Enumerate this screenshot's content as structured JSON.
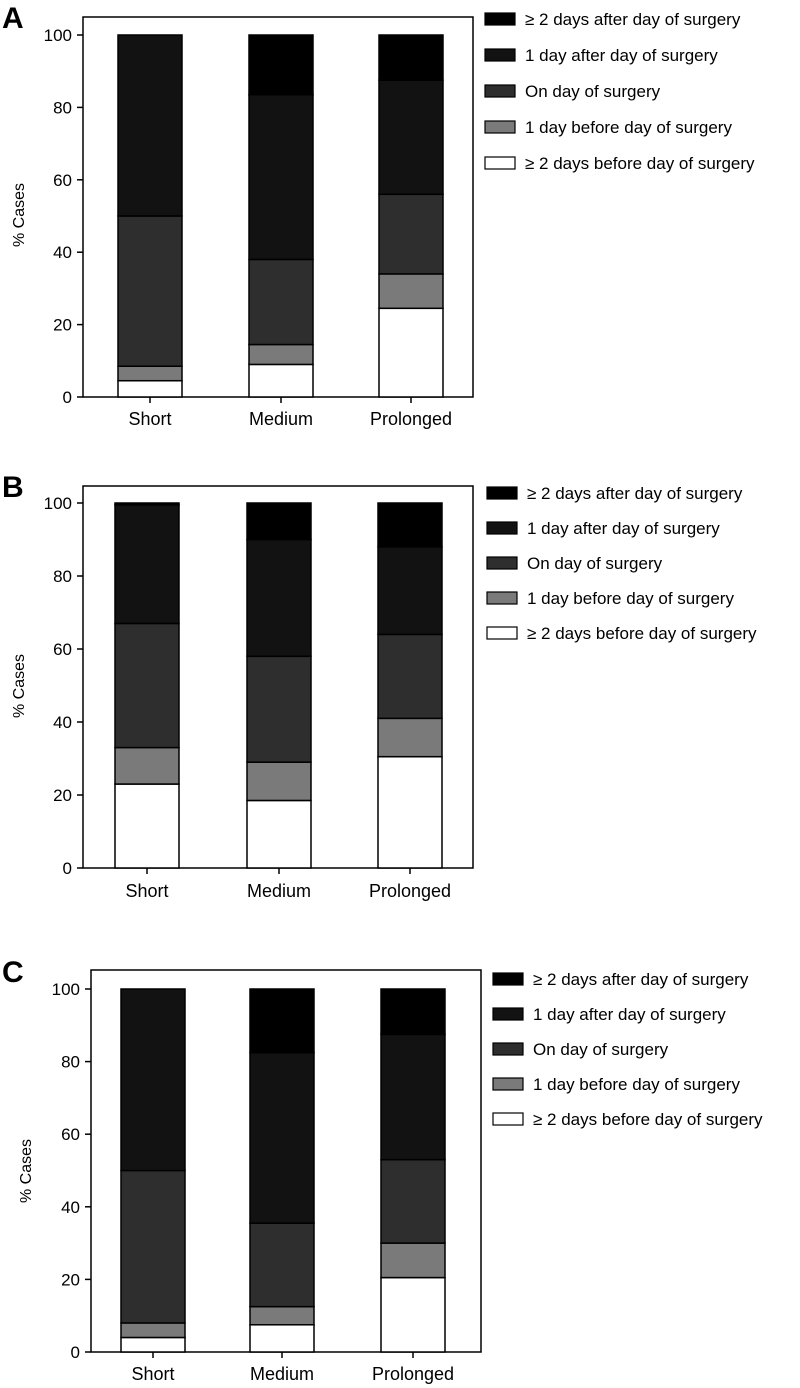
{
  "chart_data": [
    {
      "panel": "A",
      "type": "bar",
      "stacked": true,
      "categories": [
        "Short",
        "Medium",
        "Prolonged"
      ],
      "ylabel": "% Cases",
      "ylim": [
        0,
        100
      ],
      "yticks": [
        0,
        20,
        40,
        60,
        80,
        100
      ],
      "series": [
        {
          "name": "≥ 2 days before day of surgery",
          "color": "#ffffff",
          "values": [
            4.5,
            9,
            24.5
          ]
        },
        {
          "name": "1 day before day of surgery",
          "color": "#7a7a7a",
          "values": [
            4,
            5.5,
            9.5
          ]
        },
        {
          "name": "On day of surgery",
          "color": "#2e2e2e",
          "values": [
            41.5,
            23.5,
            22
          ]
        },
        {
          "name": "1 day after day of surgery",
          "color": "#121212",
          "values": [
            50,
            45.5,
            31.5
          ]
        },
        {
          "name": "≥ 2 days after day of surgery",
          "color": "#000000",
          "values": [
            0,
            16.5,
            12.5
          ]
        }
      ],
      "legend": [
        "≥ 2 days after day of surgery",
        "1 day after day of surgery",
        "On day of surgery",
        "1 day before day of surgery",
        "≥ 2 days before day of surgery"
      ]
    },
    {
      "panel": "B",
      "type": "bar",
      "stacked": true,
      "categories": [
        "Short",
        "Medium",
        "Prolonged"
      ],
      "ylabel": "% Cases",
      "ylim": [
        0,
        100
      ],
      "yticks": [
        0,
        20,
        40,
        60,
        80,
        100
      ],
      "series": [
        {
          "name": "≥ 2 days before day of surgery",
          "color": "#ffffff",
          "values": [
            23,
            18.5,
            30.5
          ]
        },
        {
          "name": "1 day before day of surgery",
          "color": "#7a7a7a",
          "values": [
            10,
            10.5,
            10.5
          ]
        },
        {
          "name": "On day of surgery",
          "color": "#2e2e2e",
          "values": [
            34,
            29,
            23
          ]
        },
        {
          "name": "1 day after day of surgery",
          "color": "#121212",
          "values": [
            32.5,
            32,
            24
          ]
        },
        {
          "name": "≥ 2 days after day of surgery",
          "color": "#000000",
          "values": [
            0.5,
            10,
            12
          ]
        }
      ],
      "legend": [
        "≥ 2 days after day of surgery",
        "1 day after day of surgery",
        "On day of surgery",
        "1 day before day of surgery",
        "≥ 2 days before day of surgery"
      ]
    },
    {
      "panel": "C",
      "type": "bar",
      "stacked": true,
      "categories": [
        "Short",
        "Medium",
        "Prolonged"
      ],
      "ylabel": "% Cases",
      "ylim": [
        0,
        100
      ],
      "yticks": [
        0,
        20,
        40,
        60,
        80,
        100
      ],
      "series": [
        {
          "name": "≥ 2 days before day of surgery",
          "color": "#ffffff",
          "values": [
            4,
            7.5,
            20.5
          ]
        },
        {
          "name": "1 day before day of surgery",
          "color": "#7a7a7a",
          "values": [
            4,
            5,
            9.5
          ]
        },
        {
          "name": "On day of surgery",
          "color": "#2e2e2e",
          "values": [
            42,
            23,
            23
          ]
        },
        {
          "name": "1 day after day of surgery",
          "color": "#121212",
          "values": [
            50,
            47,
            34.5
          ]
        },
        {
          "name": "≥ 2 days after day of surgery",
          "color": "#000000",
          "values": [
            0,
            17.5,
            12.5
          ]
        }
      ],
      "legend": [
        "≥ 2 days after day of surgery",
        "1 day after day of surgery",
        "On day of surgery",
        "1 day before day of surgery",
        "≥ 2 days before day of surgery"
      ]
    }
  ]
}
